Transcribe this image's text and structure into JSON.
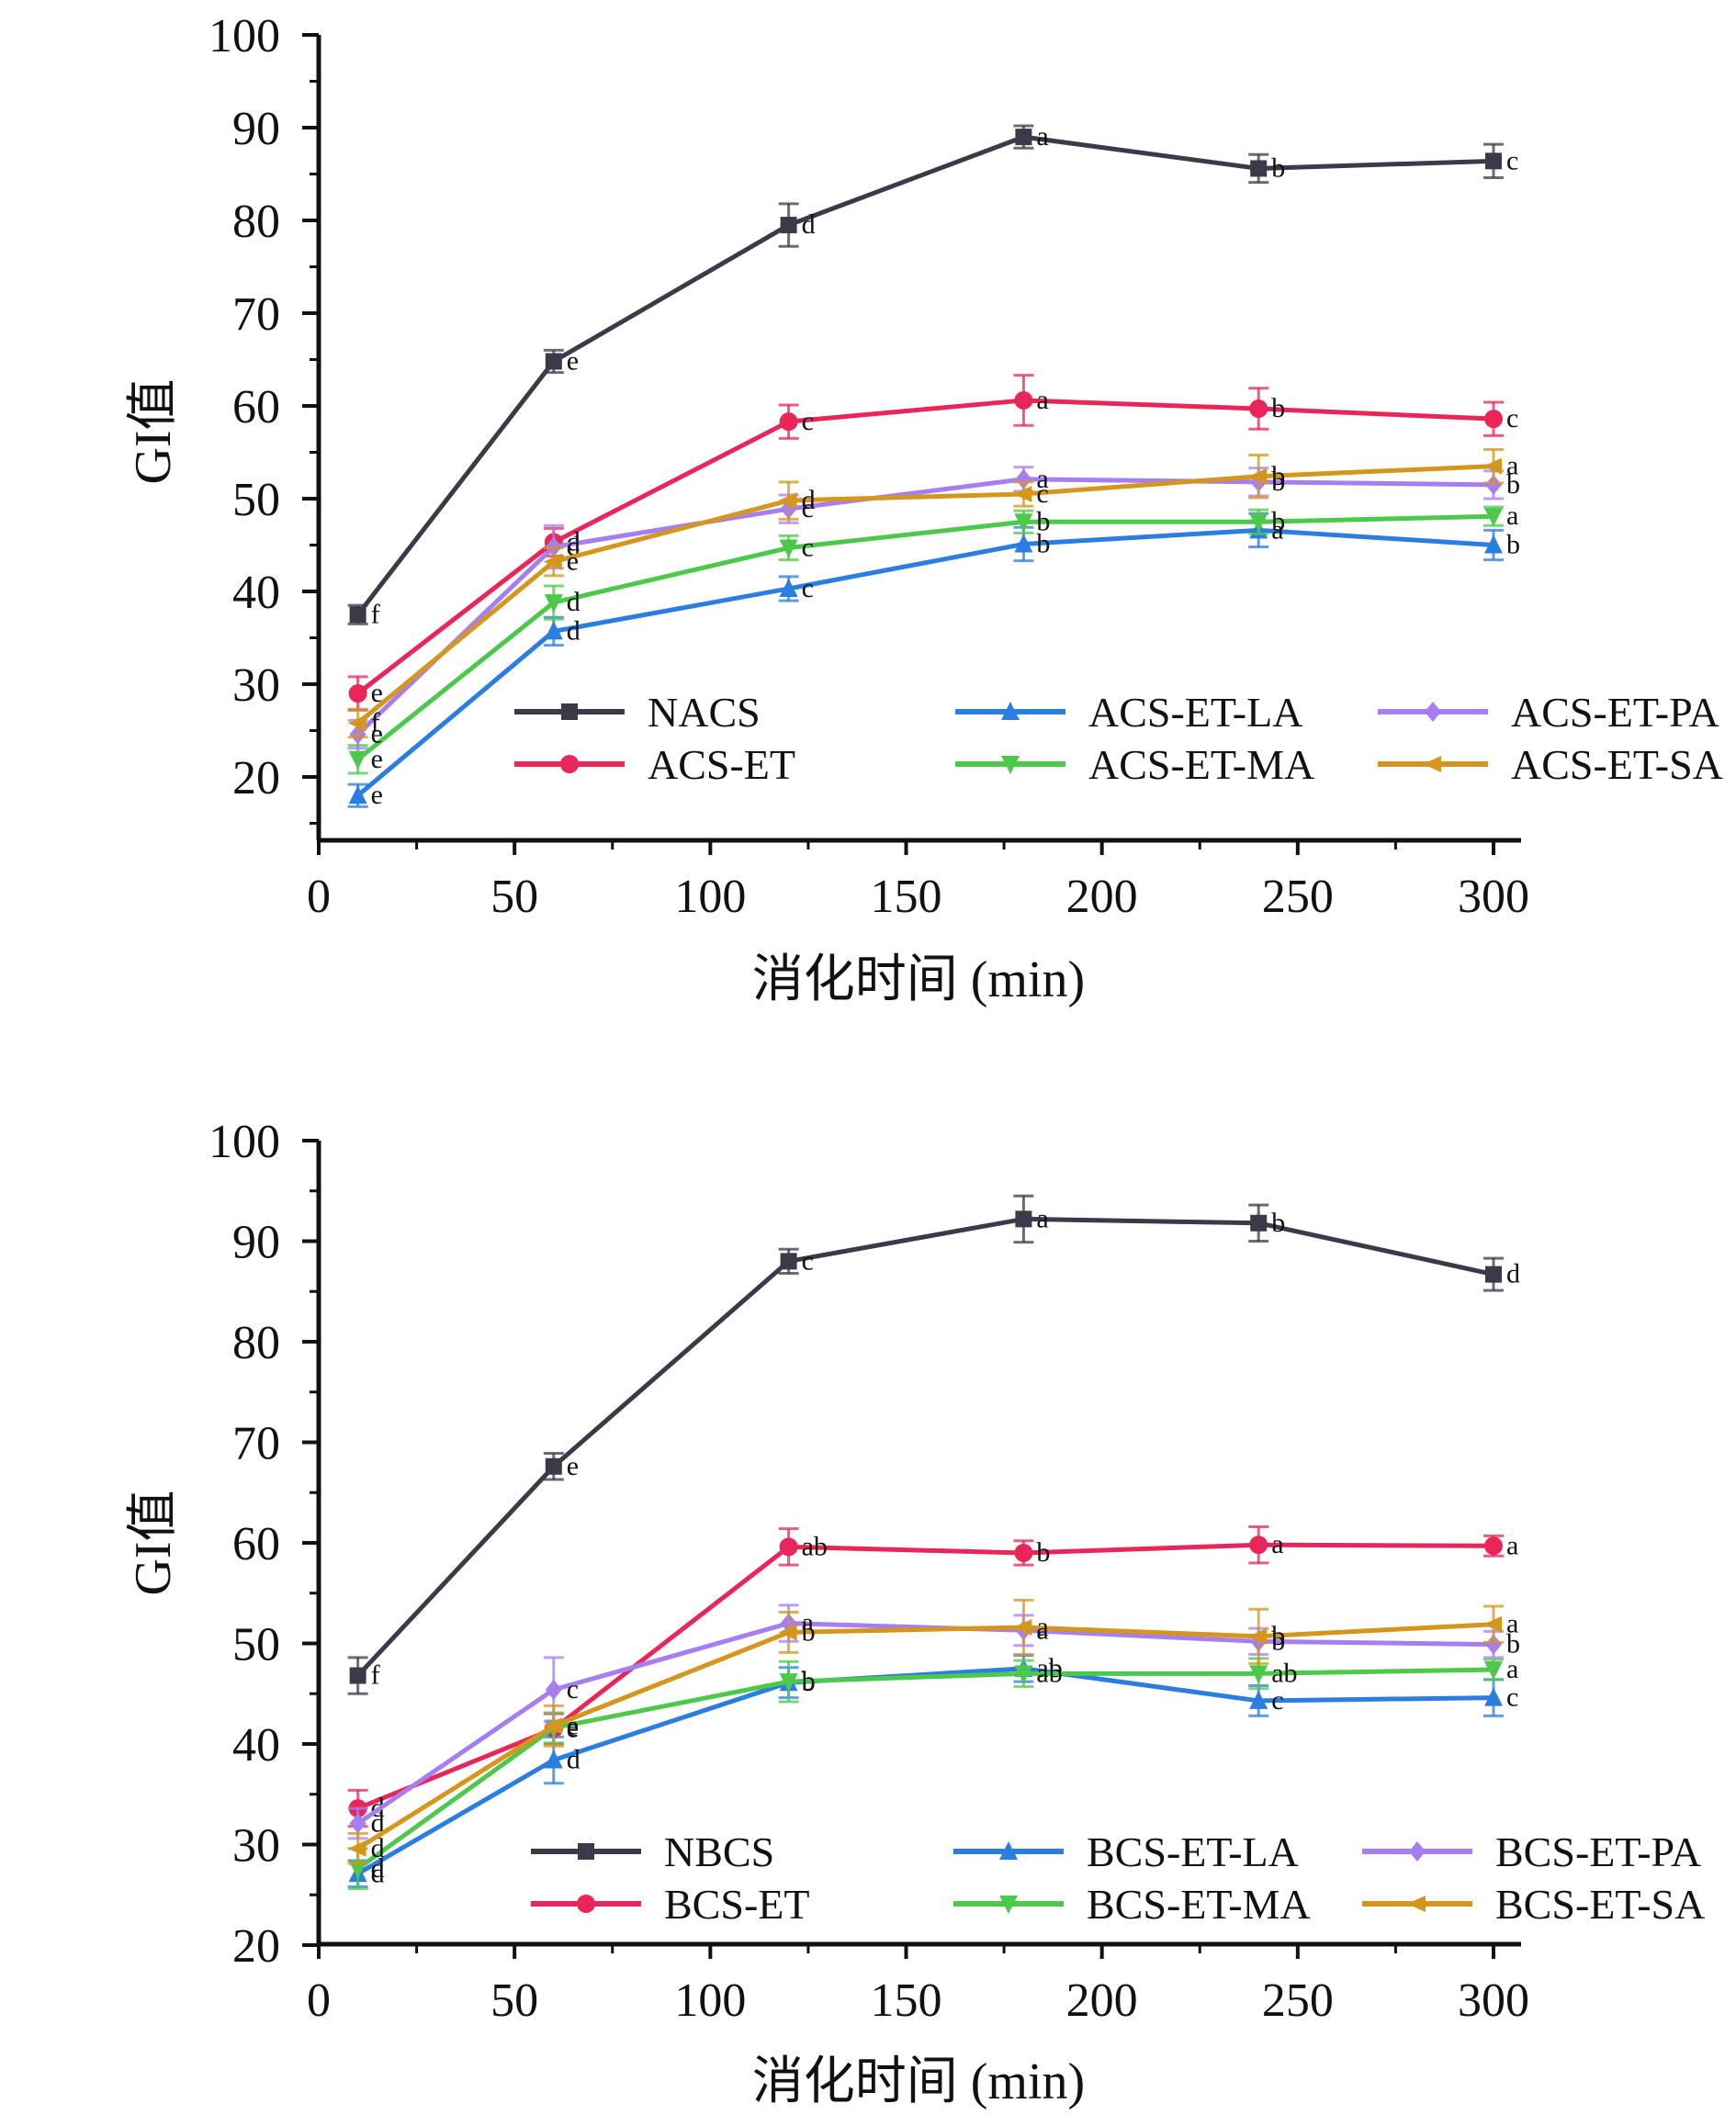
{
  "chart_data": [
    {
      "type": "line",
      "panel": "top",
      "title": "",
      "xlabel": "消化时间 (min)",
      "ylabel": "GI值",
      "xlim": [
        0,
        305
      ],
      "ylim": [
        13,
        100
      ],
      "xticks": [
        0,
        50,
        100,
        150,
        200,
        250,
        300
      ],
      "yticks": [
        20,
        30,
        40,
        50,
        60,
        70,
        80,
        90,
        100
      ],
      "grid": false,
      "legend_placement": "lower-right",
      "x": [
        10,
        60,
        120,
        180,
        240,
        300
      ],
      "series": [
        {
          "name": "NACS",
          "color": "#3a3a48",
          "marker": "square",
          "values": [
            37.5,
            64.8,
            79.5,
            89.0,
            85.6,
            86.4
          ],
          "errors": [
            1.0,
            1.2,
            2.3,
            1.2,
            1.5,
            1.8
          ],
          "labels": [
            "f",
            "e",
            "d",
            "a",
            "b",
            "c"
          ]
        },
        {
          "name": "ACS-ET",
          "color": "#e8265a",
          "marker": "circle",
          "values": [
            29.0,
            45.3,
            58.3,
            60.6,
            59.7,
            58.6
          ],
          "errors": [
            1.8,
            1.5,
            1.8,
            2.7,
            2.2,
            1.8
          ],
          "labels": [
            "e",
            "d",
            "c",
            "a",
            "b",
            "c"
          ]
        },
        {
          "name": "ACS-ET-LA",
          "color": "#2a7de1",
          "marker": "triangle-up",
          "values": [
            18.0,
            35.7,
            40.3,
            45.1,
            46.6,
            45.0
          ],
          "errors": [
            1.2,
            1.5,
            1.3,
            1.8,
            1.8,
            1.6
          ],
          "labels": [
            "e",
            "d",
            "c",
            "b",
            "a",
            "b"
          ]
        },
        {
          "name": "ACS-ET-MA",
          "color": "#4cc94a",
          "marker": "triangle-down",
          "values": [
            21.9,
            38.8,
            44.7,
            47.5,
            47.5,
            48.1
          ],
          "errors": [
            1.5,
            1.8,
            1.3,
            1.2,
            1.3,
            1.0
          ],
          "labels": [
            "e",
            "d",
            "c",
            "b",
            "b",
            "a"
          ]
        },
        {
          "name": "ACS-ET-PA",
          "color": "#a77ef0",
          "marker": "diamond",
          "values": [
            24.6,
            44.8,
            48.9,
            52.1,
            51.8,
            51.5
          ],
          "errors": [
            1.5,
            2.3,
            1.5,
            1.3,
            1.5,
            1.5
          ],
          "labels": [
            "e",
            "d",
            "c",
            "a",
            "b",
            "b"
          ]
        },
        {
          "name": "ACS-ET-SA",
          "color": "#d4961c",
          "marker": "left-triangle",
          "values": [
            25.8,
            43.2,
            49.8,
            50.5,
            52.4,
            53.5
          ],
          "errors": [
            1.5,
            1.5,
            2.0,
            1.3,
            2.3,
            1.8
          ],
          "labels": [
            "f",
            "e",
            "d",
            "c",
            "b",
            "a"
          ]
        }
      ]
    },
    {
      "type": "line",
      "panel": "bottom",
      "title": "",
      "xlabel": "消化时间 (min)",
      "ylabel": "GI值",
      "xlim": [
        0,
        305
      ],
      "ylim": [
        20,
        100
      ],
      "xticks": [
        0,
        50,
        100,
        150,
        200,
        250,
        300
      ],
      "yticks": [
        20,
        30,
        40,
        50,
        60,
        70,
        80,
        90,
        100
      ],
      "grid": false,
      "legend_placement": "lower-right",
      "x": [
        10,
        60,
        120,
        180,
        240,
        300
      ],
      "series": [
        {
          "name": "NBCS",
          "color": "#3a3a48",
          "marker": "square",
          "values": [
            46.8,
            67.6,
            88.0,
            92.2,
            91.8,
            86.7
          ],
          "errors": [
            1.8,
            1.3,
            1.2,
            2.3,
            1.8,
            1.6
          ],
          "labels": [
            "f",
            "e",
            "c",
            "a",
            "b",
            "d"
          ]
        },
        {
          "name": "BCS-ET",
          "color": "#e8265a",
          "marker": "circle",
          "values": [
            33.6,
            41.5,
            59.6,
            59.0,
            59.8,
            59.7
          ],
          "errors": [
            1.8,
            1.5,
            1.8,
            1.2,
            1.8,
            1.0
          ],
          "labels": [
            "d",
            "e",
            "ab",
            "b",
            "a",
            "a"
          ]
        },
        {
          "name": "BCS-ET-LA",
          "color": "#2a7de1",
          "marker": "triangle-up",
          "values": [
            27.1,
            38.4,
            46.1,
            47.5,
            44.3,
            44.6
          ],
          "errors": [
            1.3,
            2.3,
            1.5,
            1.3,
            1.5,
            1.8
          ],
          "labels": [
            "d",
            "d",
            "b",
            "ab",
            "c",
            "c"
          ]
        },
        {
          "name": "BCS-ET-MA",
          "color": "#4cc94a",
          "marker": "triangle-down",
          "values": [
            27.6,
            41.6,
            46.2,
            47.0,
            47.0,
            47.4
          ],
          "errors": [
            2.0,
            1.5,
            2.0,
            1.3,
            1.5,
            1.0
          ],
          "labels": [
            "d",
            "e",
            "b",
            "ab",
            "ab",
            "a"
          ]
        },
        {
          "name": "BCS-ET-PA",
          "color": "#a77ef0",
          "marker": "diamond",
          "values": [
            32.1,
            45.4,
            52.0,
            51.3,
            50.2,
            49.9
          ],
          "errors": [
            1.5,
            3.2,
            1.8,
            1.5,
            1.3,
            1.3
          ],
          "labels": [
            "d",
            "c",
            "a",
            "a",
            "b",
            "b"
          ]
        },
        {
          "name": "BCS-ET-SA",
          "color": "#d4961c",
          "marker": "left-triangle",
          "values": [
            29.6,
            41.8,
            51.1,
            51.6,
            50.7,
            51.9
          ],
          "errors": [
            1.5,
            2.0,
            2.0,
            2.7,
            2.7,
            1.8
          ],
          "labels": [
            "d",
            "e",
            "b",
            "a",
            "b",
            "a"
          ]
        }
      ]
    }
  ]
}
